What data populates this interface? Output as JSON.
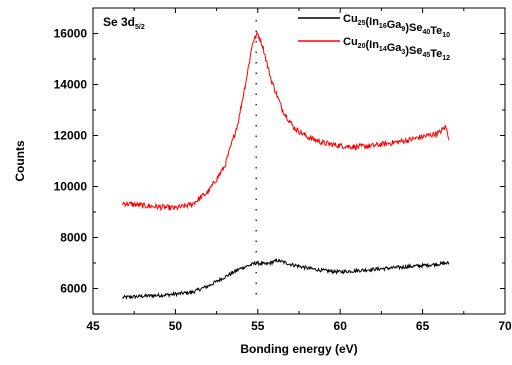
{
  "chart_data": {
    "type": "line",
    "title": "",
    "xlabel": "Bonding energy (eV)",
    "ylabel": "Counts",
    "xlim": [
      45,
      70
    ],
    "ylim": [
      5000,
      17000
    ],
    "x_ticks": [
      45,
      50,
      55,
      60,
      65,
      70
    ],
    "y_ticks": [
      6000,
      8000,
      10000,
      12000,
      14000,
      16000
    ],
    "grid": false,
    "legend_position": "top-right",
    "annotation": {
      "text": "Se 3d",
      "sub": "5/2"
    },
    "reference_line_x": 54.9,
    "series": [
      {
        "name": "Cu25(In16Ga9)Se40Te10",
        "legend_parts": [
          [
            "Cu",
            "25"
          ],
          [
            "(In",
            "16"
          ],
          [
            "Ga",
            "9"
          ],
          [
            ")Se",
            "40"
          ],
          [
            "Te",
            "10"
          ]
        ],
        "color": "#000000",
        "points": [
          [
            46.8,
            5650
          ],
          [
            48,
            5700
          ],
          [
            49.5,
            5750
          ],
          [
            51,
            5850
          ],
          [
            52,
            6100
          ],
          [
            53,
            6450
          ],
          [
            54,
            6800
          ],
          [
            54.9,
            7000
          ],
          [
            55.5,
            6950
          ],
          [
            56.2,
            7100
          ],
          [
            57,
            6950
          ],
          [
            58,
            6800
          ],
          [
            59,
            6700
          ],
          [
            60,
            6650
          ],
          [
            61,
            6700
          ],
          [
            62,
            6750
          ],
          [
            63,
            6800
          ],
          [
            64,
            6850
          ],
          [
            65,
            6900
          ],
          [
            66.6,
            7000
          ]
        ]
      },
      {
        "name": "Cu20(In14Ga3)Se45Te12",
        "legend_parts": [
          [
            "Cu",
            "20"
          ],
          [
            "(In",
            "14"
          ],
          [
            "Ga",
            "3"
          ],
          [
            ")Se",
            "45"
          ],
          [
            "Te",
            "12"
          ]
        ],
        "color": "#ff0000",
        "points": [
          [
            46.8,
            9350
          ],
          [
            48,
            9250
          ],
          [
            49,
            9200
          ],
          [
            50,
            9150
          ],
          [
            51,
            9300
          ],
          [
            52,
            9800
          ],
          [
            53,
            10800
          ],
          [
            53.8,
            12500
          ],
          [
            54.3,
            14200
          ],
          [
            54.7,
            15700
          ],
          [
            55,
            16000
          ],
          [
            55.3,
            15500
          ],
          [
            55.8,
            14200
          ],
          [
            56.5,
            13000
          ],
          [
            57.2,
            12300
          ],
          [
            58,
            11950
          ],
          [
            59,
            11700
          ],
          [
            60,
            11600
          ],
          [
            61,
            11550
          ],
          [
            62,
            11600
          ],
          [
            63,
            11700
          ],
          [
            64,
            11800
          ],
          [
            65,
            11950
          ],
          [
            66,
            12100
          ],
          [
            66.4,
            12350
          ],
          [
            66.6,
            11900
          ]
        ]
      }
    ]
  }
}
